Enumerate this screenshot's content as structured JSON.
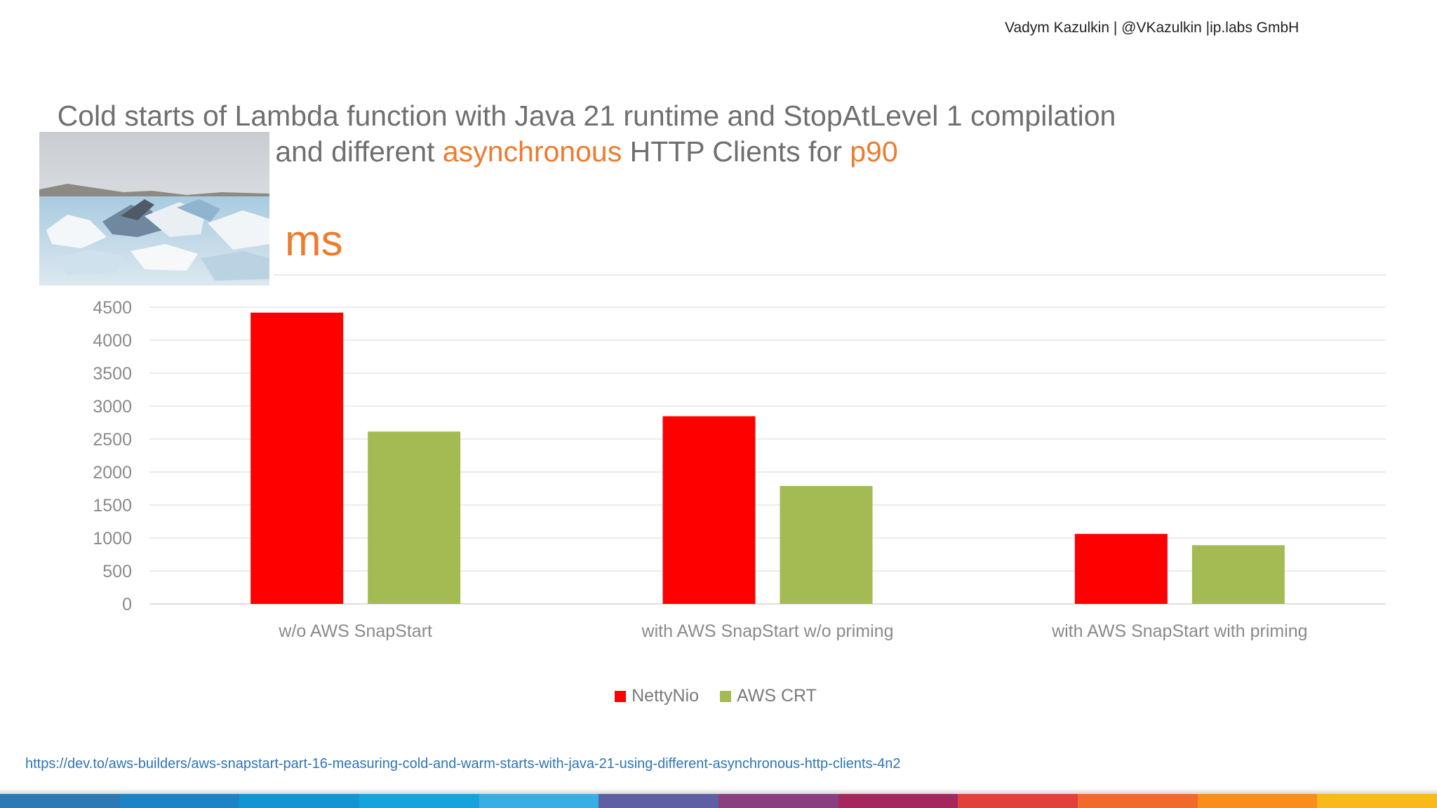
{
  "header": {
    "author_line": "Vadym Kazulkin | @VKazulkin |ip.labs GmbH"
  },
  "title": {
    "line1": "Cold starts of Lambda function with Java 21 runtime and StopAtLevel 1 compilation",
    "line2_pre": "and different ",
    "line2_hl1": "asynchronous",
    "line2_mid": " HTTP Clients for ",
    "line2_hl2": "p90"
  },
  "unit_label": "ms",
  "chart_data": {
    "type": "bar",
    "title": "Cold starts of Lambda function with Java 21 runtime and StopAtLevel 1 compilation and different asynchronous HTTP Clients for p90",
    "xlabel": "",
    "ylabel": "ms",
    "categories": [
      "w/o AWS SnapStart",
      "with AWS SnapStart w/o  priming",
      "with AWS SnapStart with priming"
    ],
    "series": [
      {
        "name": "NettyNio",
        "color": "#ff0000",
        "values": [
          4418,
          2846,
          1062
        ]
      },
      {
        "name": "AWS CRT",
        "color": "#a3bb52",
        "values": [
          2614,
          1789,
          890
        ]
      }
    ],
    "ylim": [
      0,
      4500
    ],
    "yticks": [
      0,
      500,
      1000,
      1500,
      2000,
      2500,
      3000,
      3500,
      4000,
      4500
    ],
    "grid": true,
    "legend": "bottom-center"
  },
  "footer": {
    "source_url": "https://dev.to/aws-builders/aws-snapstart-part-16-measuring-cold-and-warm-starts-with-java-21-using-different-asynchronous-http-clients-4n2",
    "stripe_colors": [
      "#2a7ab8",
      "#1a84c6",
      "#1494d2",
      "#17a2de",
      "#38aee6",
      "#5e5fa4",
      "#8a3f7e",
      "#a6265e",
      "#e0413a",
      "#f06a2a",
      "#fb8c1e",
      "#fbb81a"
    ]
  }
}
